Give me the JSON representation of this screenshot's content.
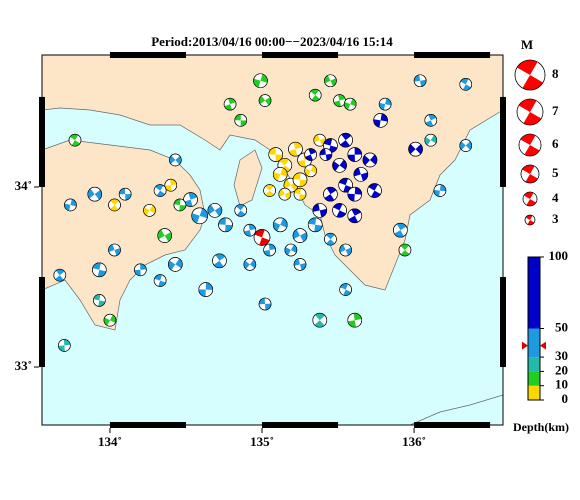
{
  "map": {
    "title": "Period:2013/04/16 00:00−−2023/04/16 15:14",
    "xlim": [
      133.553,
      136.585
    ],
    "ylim": [
      32.678,
      34.733
    ],
    "xticks": [
      {
        "value": 134,
        "label": "134˚"
      },
      {
        "value": 135,
        "label": "135˚"
      },
      {
        "value": 136,
        "label": "136˚"
      }
    ],
    "yticks": [
      {
        "value": 33,
        "label": "33˚"
      },
      {
        "value": 34,
        "label": "34˚"
      }
    ],
    "magnitude_legend": {
      "title": "M",
      "magnitudes": [
        8,
        7,
        6,
        5,
        4,
        3
      ],
      "color": "#ff0000"
    },
    "depth_scale": {
      "label": "Depth(km)",
      "ylim": [
        0,
        100
      ],
      "ticks": [
        0,
        10,
        20,
        30,
        50,
        100
      ],
      "colors": [
        "#ffd700",
        "#22cc22",
        "#22bbaa",
        "#1e9be0",
        "#0000c8"
      ],
      "marker": 38,
      "marker_color": "#dd0000"
    },
    "mainshock": {
      "lon": 135.0,
      "lat": 33.72,
      "depth": 38,
      "mag": 4.5,
      "color": "#ee0000"
    },
    "events": [
      {
        "lon": 135.09,
        "lat": 34.18,
        "depth": 5,
        "mag": 4
      },
      {
        "lon": 135.15,
        "lat": 34.12,
        "depth": 5,
        "mag": 4
      },
      {
        "lon": 135.22,
        "lat": 34.21,
        "depth": 5,
        "mag": 4
      },
      {
        "lon": 135.12,
        "lat": 34.07,
        "depth": 5,
        "mag": 4
      },
      {
        "lon": 135.19,
        "lat": 34.01,
        "depth": 5,
        "mag": 4
      },
      {
        "lon": 135.25,
        "lat": 34.04,
        "depth": 5,
        "mag": 4
      },
      {
        "lon": 135.05,
        "lat": 33.98,
        "depth": 5,
        "mag": 3.5
      },
      {
        "lon": 135.28,
        "lat": 34.15,
        "depth": 5,
        "mag": 4
      },
      {
        "lon": 135.32,
        "lat": 34.09,
        "depth": 5,
        "mag": 3.5
      },
      {
        "lon": 135.15,
        "lat": 33.96,
        "depth": 5,
        "mag": 3.5
      },
      {
        "lon": 135.25,
        "lat": 33.96,
        "depth": 5,
        "mag": 3.5
      },
      {
        "lon": 134.03,
        "lat": 33.9,
        "depth": 5,
        "mag": 3.5
      },
      {
        "lon": 134.4,
        "lat": 34.01,
        "depth": 5,
        "mag": 3.5
      },
      {
        "lon": 134.26,
        "lat": 33.87,
        "depth": 5,
        "mag": 3.5
      },
      {
        "lon": 135.38,
        "lat": 34.26,
        "depth": 5,
        "mag": 3.5
      },
      {
        "lon": 135.45,
        "lat": 34.23,
        "depth": 70,
        "mag": 4
      },
      {
        "lon": 135.55,
        "lat": 34.26,
        "depth": 70,
        "mag": 4
      },
      {
        "lon": 135.61,
        "lat": 34.18,
        "depth": 75,
        "mag": 4
      },
      {
        "lon": 135.51,
        "lat": 34.12,
        "depth": 70,
        "mag": 4
      },
      {
        "lon": 135.65,
        "lat": 34.07,
        "depth": 70,
        "mag": 4
      },
      {
        "lon": 135.55,
        "lat": 34.01,
        "depth": 70,
        "mag": 4
      },
      {
        "lon": 135.45,
        "lat": 33.96,
        "depth": 65,
        "mag": 4
      },
      {
        "lon": 135.61,
        "lat": 33.96,
        "depth": 70,
        "mag": 4
      },
      {
        "lon": 135.71,
        "lat": 34.15,
        "depth": 75,
        "mag": 4
      },
      {
        "lon": 135.38,
        "lat": 33.87,
        "depth": 65,
        "mag": 4
      },
      {
        "lon": 135.51,
        "lat": 33.87,
        "depth": 65,
        "mag": 4
      },
      {
        "lon": 135.61,
        "lat": 33.84,
        "depth": 65,
        "mag": 4
      },
      {
        "lon": 135.78,
        "lat": 34.37,
        "depth": 75,
        "mag": 4
      },
      {
        "lon": 136.01,
        "lat": 34.21,
        "depth": 70,
        "mag": 4
      },
      {
        "lon": 135.42,
        "lat": 34.18,
        "depth": 70,
        "mag": 3.5
      },
      {
        "lon": 135.74,
        "lat": 33.98,
        "depth": 70,
        "mag": 4
      },
      {
        "lon": 135.32,
        "lat": 34.18,
        "depth": 60,
        "mag": 3.5
      },
      {
        "lon": 133.74,
        "lat": 33.9,
        "depth": 40,
        "mag": 3.5
      },
      {
        "lon": 133.9,
        "lat": 33.96,
        "depth": 40,
        "mag": 4
      },
      {
        "lon": 134.1,
        "lat": 33.96,
        "depth": 40,
        "mag": 3.5
      },
      {
        "lon": 134.33,
        "lat": 33.98,
        "depth": 40,
        "mag": 3.5
      },
      {
        "lon": 134.53,
        "lat": 33.93,
        "depth": 40,
        "mag": 4
      },
      {
        "lon": 134.59,
        "lat": 33.84,
        "depth": 40,
        "mag": 4.5
      },
      {
        "lon": 134.69,
        "lat": 33.87,
        "depth": 40,
        "mag": 4
      },
      {
        "lon": 134.76,
        "lat": 33.79,
        "depth": 40,
        "mag": 4
      },
      {
        "lon": 134.86,
        "lat": 33.87,
        "depth": 40,
        "mag": 3.5
      },
      {
        "lon": 134.92,
        "lat": 33.76,
        "depth": 40,
        "mag": 3.5
      },
      {
        "lon": 135.12,
        "lat": 33.79,
        "depth": 40,
        "mag": 4
      },
      {
        "lon": 135.25,
        "lat": 33.73,
        "depth": 40,
        "mag": 4
      },
      {
        "lon": 135.35,
        "lat": 33.79,
        "depth": 40,
        "mag": 4
      },
      {
        "lon": 135.45,
        "lat": 33.71,
        "depth": 40,
        "mag": 3.5
      },
      {
        "lon": 135.05,
        "lat": 33.65,
        "depth": 40,
        "mag": 3.5
      },
      {
        "lon": 135.19,
        "lat": 33.65,
        "depth": 40,
        "mag": 3.5
      },
      {
        "lon": 135.55,
        "lat": 33.65,
        "depth": 40,
        "mag": 3.5
      },
      {
        "lon": 133.93,
        "lat": 33.54,
        "depth": 40,
        "mag": 4
      },
      {
        "lon": 133.67,
        "lat": 33.51,
        "depth": 40,
        "mag": 3.5
      },
      {
        "lon": 134.2,
        "lat": 33.54,
        "depth": 40,
        "mag": 3.5
      },
      {
        "lon": 134.43,
        "lat": 33.57,
        "depth": 40,
        "mag": 4
      },
      {
        "lon": 134.03,
        "lat": 33.65,
        "depth": 40,
        "mag": 3.5
      },
      {
        "lon": 134.33,
        "lat": 33.48,
        "depth": 40,
        "mag": 3.5
      },
      {
        "lon": 134.72,
        "lat": 33.59,
        "depth": 40,
        "mag": 4
      },
      {
        "lon": 134.63,
        "lat": 33.43,
        "depth": 40,
        "mag": 4
      },
      {
        "lon": 134.92,
        "lat": 33.57,
        "depth": 40,
        "mag": 3.5
      },
      {
        "lon": 135.25,
        "lat": 33.57,
        "depth": 40,
        "mag": 3.5
      },
      {
        "lon": 135.55,
        "lat": 33.43,
        "depth": 40,
        "mag": 3.5
      },
      {
        "lon": 135.91,
        "lat": 33.76,
        "depth": 40,
        "mag": 4
      },
      {
        "lon": 136.17,
        "lat": 33.98,
        "depth": 40,
        "mag": 3.5
      },
      {
        "lon": 136.34,
        "lat": 34.23,
        "depth": 40,
        "mag": 3.5
      },
      {
        "lon": 136.04,
        "lat": 34.59,
        "depth": 40,
        "mag": 3.5
      },
      {
        "lon": 136.34,
        "lat": 34.57,
        "depth": 40,
        "mag": 3.5
      },
      {
        "lon": 136.11,
        "lat": 34.37,
        "depth": 40,
        "mag": 3.5
      },
      {
        "lon": 135.81,
        "lat": 34.46,
        "depth": 40,
        "mag": 3.5
      },
      {
        "lon": 134.43,
        "lat": 34.15,
        "depth": 40,
        "mag": 3.5
      },
      {
        "lon": 135.02,
        "lat": 33.35,
        "depth": 40,
        "mag": 3.5
      },
      {
        "lon": 133.77,
        "lat": 34.26,
        "depth": 15,
        "mag": 3.5
      },
      {
        "lon": 134.79,
        "lat": 34.46,
        "depth": 15,
        "mag": 3.5
      },
      {
        "lon": 134.99,
        "lat": 34.59,
        "depth": 15,
        "mag": 4
      },
      {
        "lon": 135.02,
        "lat": 34.48,
        "depth": 15,
        "mag": 3.5
      },
      {
        "lon": 134.86,
        "lat": 34.37,
        "depth": 15,
        "mag": 3.5
      },
      {
        "lon": 135.35,
        "lat": 34.51,
        "depth": 15,
        "mag": 3.5
      },
      {
        "lon": 135.51,
        "lat": 34.48,
        "depth": 15,
        "mag": 3.5
      },
      {
        "lon": 135.58,
        "lat": 34.46,
        "depth": 15,
        "mag": 3.5
      },
      {
        "lon": 134.36,
        "lat": 33.73,
        "depth": 15,
        "mag": 4
      },
      {
        "lon": 134.46,
        "lat": 33.9,
        "depth": 15,
        "mag": 3.5
      },
      {
        "lon": 135.94,
        "lat": 33.65,
        "depth": 15,
        "mag": 3.5
      },
      {
        "lon": 135.61,
        "lat": 33.26,
        "depth": 15,
        "mag": 4
      },
      {
        "lon": 134.0,
        "lat": 33.26,
        "depth": 15,
        "mag": 3.5
      },
      {
        "lon": 135.45,
        "lat": 34.59,
        "depth": 15,
        "mag": 3.5
      },
      {
        "lon": 133.93,
        "lat": 33.37,
        "depth": 25,
        "mag": 3.5
      },
      {
        "lon": 135.38,
        "lat": 33.26,
        "depth": 25,
        "mag": 4
      },
      {
        "lon": 133.7,
        "lat": 33.12,
        "depth": 25,
        "mag": 3.5
      },
      {
        "lon": 136.11,
        "lat": 34.26,
        "depth": 25,
        "mag": 3.5
      }
    ]
  }
}
